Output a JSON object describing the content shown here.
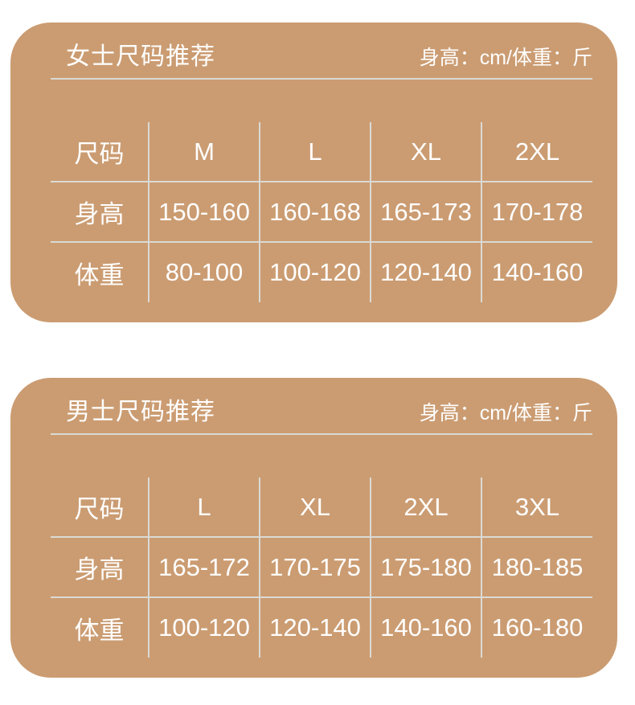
{
  "style": {
    "page_background": "#ffffff",
    "panel_color": "#cb9c72",
    "divider_color": "#dadad5",
    "text_color": "#ffffff"
  },
  "chart_data": [
    {
      "type": "table",
      "title": "女士尺码推荐",
      "subtitle": "身高：cm/体重：斤",
      "columns": [
        "尺码",
        "M",
        "L",
        "XL",
        "2XL"
      ],
      "rows": [
        [
          "身高",
          "150-160",
          "160-168",
          "165-173",
          "170-178"
        ],
        [
          "体重",
          "80-100",
          "100-120",
          "120-140",
          "140-160"
        ]
      ]
    },
    {
      "type": "table",
      "title": "男士尺码推荐",
      "subtitle": "身高：cm/体重：斤",
      "columns": [
        "尺码",
        "L",
        "XL",
        "2XL",
        "3XL"
      ],
      "rows": [
        [
          "身高",
          "165-172",
          "170-175",
          "175-180",
          "180-185"
        ],
        [
          "体重",
          "100-120",
          "120-140",
          "140-160",
          "160-180"
        ]
      ]
    }
  ]
}
